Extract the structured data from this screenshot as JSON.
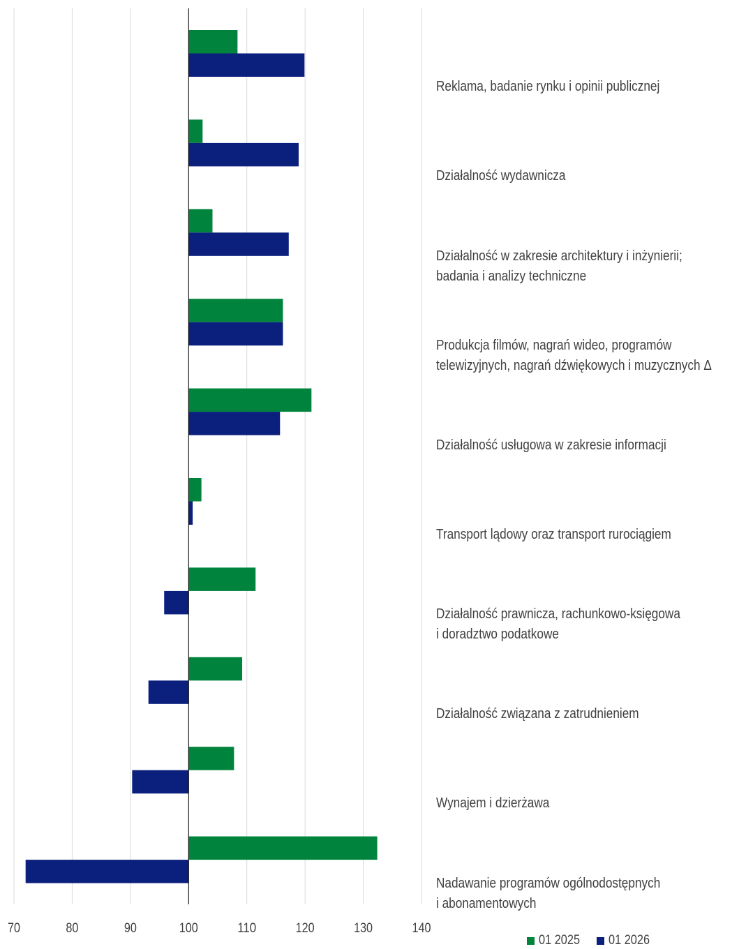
{
  "chart_data": {
    "type": "bar",
    "orientation": "horizontal",
    "categories": [
      [
        "Reklama, badanie rynku i opinii publicznej"
      ],
      [
        "Działalność wydawnicza"
      ],
      [
        "Działalność w zakresie architektury i inżynierii;",
        "badania i analizy techniczne"
      ],
      [
        "Produkcja filmów, nagrań wideo, programów",
        "telewizyjnych, nagrań dźwiękowych i muzycznych Δ"
      ],
      [
        "Działalność usługowa w zakresie informacji"
      ],
      [
        "Transport lądowy oraz transport rurociągiem"
      ],
      [
        "Działalność prawnicza, rachunkowo-księgowa",
        "i doradztwo podatkowe"
      ],
      [
        "Działalność związana z zatrudnieniem"
      ],
      [
        "Wynajem i dzierżawa"
      ],
      [
        "Nadawanie programów ogólnodostępnych",
        "i abonamentowych"
      ]
    ],
    "series": [
      {
        "name": "01 2025",
        "color": "#00843d",
        "values": [
          108.4,
          102.4,
          104.1,
          116.2,
          121.1,
          102.2,
          111.5,
          109.2,
          107.8,
          132.4
        ]
      },
      {
        "name": "01 2026",
        "color": "#0b1f7c",
        "values": [
          119.9,
          118.9,
          117.2,
          116.2,
          115.7,
          100.7,
          95.8,
          93.1,
          90.3,
          72.0
        ]
      }
    ],
    "baseline": 100,
    "xlim": [
      70,
      140
    ],
    "xticks": [
      "70",
      "80",
      "90",
      "100",
      "110",
      "120",
      "130",
      "140"
    ],
    "grid": true,
    "legend_position": "bottom-right",
    "gridline_color": "#d9d9d9",
    "tick_label_color": "#404040"
  }
}
